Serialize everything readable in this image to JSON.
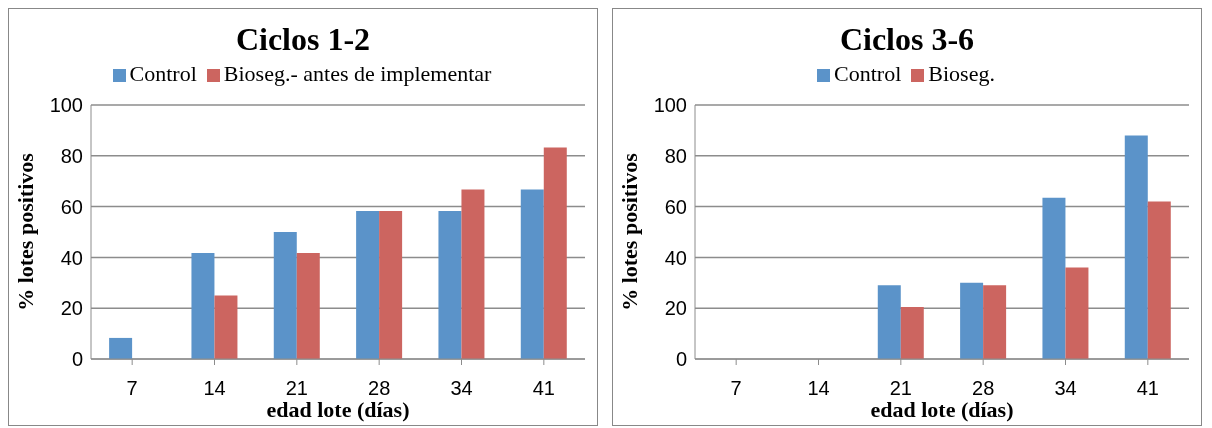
{
  "chart_data": [
    {
      "type": "bar",
      "title": "Ciclos 1-2",
      "xlabel": "edad lote (días)",
      "ylabel": "%  lotes positivos",
      "categories": [
        "7",
        "14",
        "21",
        "28",
        "34",
        "41"
      ],
      "series": [
        {
          "name": "Control",
          "color": "#5b93c9",
          "values": [
            8.3,
            41.7,
            50,
            58.3,
            58.3,
            66.7
          ]
        },
        {
          "name": "Bioseg.- antes de implementar",
          "color": "#cc6560",
          "values": [
            0,
            25,
            41.7,
            58.3,
            66.7,
            83.3
          ]
        }
      ],
      "ylim": [
        0,
        100
      ],
      "yticks": [
        0,
        20,
        40,
        60,
        80,
        100
      ],
      "grid": "y",
      "legend": "top"
    },
    {
      "type": "bar",
      "title": "Ciclos 3-6",
      "xlabel": "edad lote (días)",
      "ylabel": "%  lotes positivos",
      "categories": [
        "7",
        "14",
        "21",
        "28",
        "34",
        "41"
      ],
      "series": [
        {
          "name": "Control",
          "color": "#5b93c9",
          "values": [
            0,
            0,
            29,
            30,
            63.5,
            88
          ]
        },
        {
          "name": "Bioseg.",
          "color": "#cc6560",
          "values": [
            0,
            0,
            20.5,
            29,
            36,
            62
          ]
        }
      ],
      "ylim": [
        0,
        100
      ],
      "yticks": [
        0,
        20,
        40,
        60,
        80,
        100
      ],
      "grid": "y",
      "legend": "top"
    }
  ]
}
